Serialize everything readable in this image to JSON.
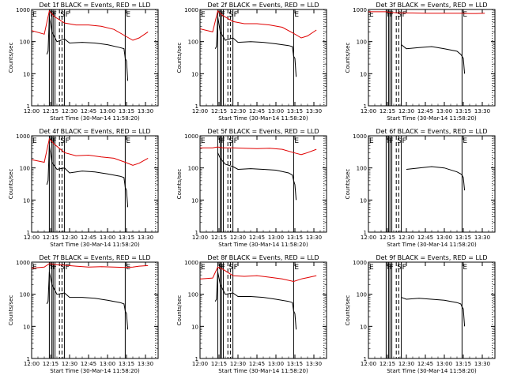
{
  "page": {
    "background": "#ffffff"
  },
  "style": {
    "events_color": "#000000",
    "lld_color": "#e00000",
    "axis_color": "#000000"
  },
  "shared": {
    "ylabel": "Counts/sec",
    "xlabel": "Start Time (30-Mar-14 11:58:20)",
    "x_ticks": [
      "12:00",
      "12:15",
      "12:30",
      "12:45",
      "13:00",
      "13:15",
      "13:30"
    ],
    "y_ticks": [
      "1",
      "10",
      "100",
      "1000"
    ],
    "ylim": [
      1,
      1000
    ],
    "xlim": [
      "12:00",
      "13:40"
    ],
    "y_scale": "log",
    "markers": [
      {
        "label": "E",
        "time": "12:00",
        "line": "dotted"
      },
      {
        "label": "F",
        "time": "12:14",
        "line": "solid"
      },
      {
        "label": "F",
        "time": "12:16",
        "line": "solid"
      },
      {
        "label": "",
        "time": "12:17",
        "line": "solid"
      },
      {
        "label": "",
        "time": "12:18.5",
        "line": "solid"
      },
      {
        "label": "S",
        "time": "12:22",
        "line": "dashed"
      },
      {
        "label": "",
        "time": "12:24",
        "line": "dashed"
      },
      {
        "label": "F",
        "time": "12:26",
        "line": "solid"
      },
      {
        "label": "E",
        "time": "13:14",
        "line": "solid"
      },
      {
        "label": "",
        "time": "13:38",
        "line": "dotted"
      }
    ]
  },
  "chart_data": [
    {
      "type": "line",
      "title": "Det 1f BLACK = Events, RED = LLD",
      "series": [
        {
          "name": "Events",
          "color": "#000000",
          "x": [
            "12:00",
            "12:12",
            "12:13",
            "12:14",
            "12:16",
            "12:20",
            "12:26",
            "12:30",
            "12:40",
            "12:50",
            "13:00",
            "13:10",
            "13:13",
            "13:14",
            "13:15",
            "13:16"
          ],
          "values": [
            null,
            40,
            50,
            600,
            200,
            100,
            120,
            90,
            95,
            90,
            80,
            65,
            60,
            30,
            25,
            6
          ]
        },
        {
          "name": "LLD",
          "color": "#e00000",
          "x": [
            "12:00",
            "12:10",
            "12:14",
            "12:18",
            "12:26",
            "12:35",
            "12:45",
            "12:55",
            "13:05",
            "13:14",
            "13:20",
            "13:25",
            "13:32"
          ],
          "values": [
            220,
            170,
            900,
            600,
            380,
            330,
            330,
            300,
            240,
            150,
            110,
            130,
            200
          ]
        }
      ]
    },
    {
      "type": "line",
      "title": "Det 2f BLACK = Events, RED = LLD",
      "series": [
        {
          "name": "Events",
          "color": "#000000",
          "x": [
            "12:00",
            "12:12",
            "12:13",
            "12:14",
            "12:16",
            "12:20",
            "12:26",
            "12:30",
            "12:40",
            "12:50",
            "13:00",
            "13:10",
            "13:13",
            "13:14",
            "13:15",
            "13:16"
          ],
          "values": [
            null,
            60,
            70,
            600,
            200,
            110,
            130,
            95,
            100,
            95,
            85,
            75,
            70,
            35,
            30,
            8
          ]
        },
        {
          "name": "LLD",
          "color": "#e00000",
          "x": [
            "12:00",
            "12:10",
            "12:14",
            "12:18",
            "12:26",
            "12:35",
            "12:45",
            "12:55",
            "13:05",
            "13:14",
            "13:20",
            "13:25",
            "13:32"
          ],
          "values": [
            250,
            200,
            900,
            650,
            420,
            360,
            360,
            330,
            280,
            180,
            130,
            150,
            230
          ]
        }
      ]
    },
    {
      "type": "line",
      "title": "Det 3f BLACK = Events, RED = LLD",
      "series": [
        {
          "name": "Events",
          "color": "#000000",
          "x": [
            "12:00",
            "12:12",
            "12:13",
            "12:14",
            "12:16",
            "12:20",
            "12:26",
            "12:30",
            "12:40",
            "12:50",
            "13:00",
            "13:10",
            "13:13",
            "13:14",
            "13:15",
            "13:16"
          ],
          "values": [
            null,
            null,
            null,
            null,
            null,
            null,
            80,
            60,
            65,
            70,
            60,
            50,
            40,
            35,
            30,
            10
          ]
        },
        {
          "name": "LLD",
          "color": "#e00000",
          "x": [
            "12:00",
            "12:10",
            "12:14",
            "12:18",
            "12:26",
            "12:35",
            "12:45",
            "12:55",
            "13:05",
            "13:14",
            "13:20",
            "13:25",
            "13:32"
          ],
          "values": [
            850,
            850,
            850,
            800,
            780,
            780,
            760,
            760,
            760,
            760,
            750,
            750,
            760
          ]
        }
      ]
    },
    {
      "type": "line",
      "title": "Det 4f BLACK = Events, RED = LLD",
      "series": [
        {
          "name": "Events",
          "color": "#000000",
          "x": [
            "12:00",
            "12:12",
            "12:13",
            "12:14",
            "12:16",
            "12:20",
            "12:26",
            "12:30",
            "12:40",
            "12:50",
            "13:00",
            "13:10",
            "13:13",
            "13:14",
            "13:15",
            "13:16"
          ],
          "values": [
            null,
            30,
            40,
            500,
            150,
            90,
            100,
            70,
            80,
            75,
            65,
            55,
            50,
            25,
            20,
            6
          ]
        },
        {
          "name": "LLD",
          "color": "#e00000",
          "x": [
            "12:00",
            "12:10",
            "12:14",
            "12:18",
            "12:26",
            "12:35",
            "12:45",
            "12:55",
            "13:05",
            "13:14",
            "13:20",
            "13:25",
            "13:32"
          ],
          "values": [
            180,
            150,
            800,
            550,
            300,
            240,
            250,
            220,
            200,
            150,
            120,
            140,
            200
          ]
        }
      ]
    },
    {
      "type": "line",
      "title": "Det 5f BLACK = Events, RED = LLD",
      "series": [
        {
          "name": "Events",
          "color": "#000000",
          "x": [
            "12:00",
            "12:12",
            "12:13",
            "12:14",
            "12:16",
            "12:20",
            "12:26",
            "12:30",
            "12:40",
            "12:50",
            "13:00",
            "13:10",
            "13:13",
            "13:14",
            "13:15",
            "13:16"
          ],
          "values": [
            null,
            null,
            null,
            300,
            200,
            130,
            110,
            90,
            95,
            90,
            85,
            70,
            60,
            40,
            30,
            10
          ]
        },
        {
          "name": "LLD",
          "color": "#e00000",
          "x": [
            "12:00",
            "12:10",
            "12:14",
            "12:18",
            "12:26",
            "12:35",
            "12:45",
            "12:55",
            "13:05",
            "13:14",
            "13:20",
            "13:25",
            "13:32"
          ],
          "values": [
            420,
            420,
            450,
            420,
            420,
            410,
            400,
            410,
            380,
            300,
            260,
            300,
            380
          ]
        }
      ]
    },
    {
      "type": "line",
      "title": "Det 6f BLACK = Events, RED = LLD",
      "series": [
        {
          "name": "Events",
          "color": "#000000",
          "x": [
            "12:00",
            "12:12",
            "12:13",
            "12:14",
            "12:16",
            "12:20",
            "12:26",
            "12:30",
            "12:40",
            "12:50",
            "13:00",
            "13:10",
            "13:13",
            "13:14",
            "13:15",
            "13:16"
          ],
          "values": [
            null,
            null,
            null,
            null,
            null,
            null,
            null,
            90,
            100,
            110,
            100,
            75,
            65,
            60,
            50,
            20
          ]
        }
      ]
    },
    {
      "type": "line",
      "title": "Det 7f BLACK = Events, RED = LLD",
      "series": [
        {
          "name": "Events",
          "color": "#000000",
          "x": [
            "12:00",
            "12:12",
            "12:13",
            "12:14",
            "12:16",
            "12:20",
            "12:26",
            "12:30",
            "12:40",
            "12:50",
            "13:00",
            "13:10",
            "13:13",
            "13:14",
            "13:15",
            "13:16"
          ],
          "values": [
            null,
            50,
            60,
            500,
            200,
            100,
            110,
            80,
            80,
            75,
            65,
            55,
            50,
            30,
            25,
            8
          ]
        },
        {
          "name": "LLD",
          "color": "#e00000",
          "x": [
            "12:00",
            "12:10",
            "12:14",
            "12:18",
            "12:26",
            "12:35",
            "12:45",
            "12:55",
            "13:05",
            "13:14",
            "13:20",
            "13:25",
            "13:32"
          ],
          "values": [
            650,
            700,
            900,
            850,
            800,
            750,
            700,
            720,
            700,
            680,
            700,
            750,
            780
          ]
        }
      ]
    },
    {
      "type": "line",
      "title": "Det 8f BLACK = Events, RED = LLD",
      "series": [
        {
          "name": "Events",
          "color": "#000000",
          "x": [
            "12:00",
            "12:12",
            "12:13",
            "12:14",
            "12:16",
            "12:20",
            "12:26",
            "12:30",
            "12:40",
            "12:50",
            "13:00",
            "13:10",
            "13:13",
            "13:14",
            "13:15",
            "13:16"
          ],
          "values": [
            null,
            60,
            70,
            500,
            200,
            100,
            110,
            85,
            85,
            80,
            70,
            60,
            55,
            30,
            25,
            8
          ]
        },
        {
          "name": "LLD",
          "color": "#e00000",
          "x": [
            "12:00",
            "12:10",
            "12:14",
            "12:18",
            "12:26",
            "12:35",
            "12:45",
            "12:55",
            "13:05",
            "13:14",
            "13:20",
            "13:25",
            "13:32"
          ],
          "values": [
            300,
            320,
            700,
            600,
            380,
            360,
            380,
            340,
            300,
            250,
            300,
            330,
            380
          ]
        }
      ]
    },
    {
      "type": "line",
      "title": "Det 9f BLACK = Events, RED = LLD",
      "series": [
        {
          "name": "Events",
          "color": "#000000",
          "x": [
            "12:00",
            "12:12",
            "12:13",
            "12:14",
            "12:16",
            "12:20",
            "12:26",
            "12:30",
            "12:40",
            "12:50",
            "13:00",
            "13:10",
            "13:13",
            "13:14",
            "13:15",
            "13:16"
          ],
          "values": [
            null,
            null,
            null,
            null,
            null,
            null,
            80,
            70,
            75,
            70,
            65,
            55,
            50,
            40,
            35,
            10
          ]
        }
      ]
    }
  ]
}
